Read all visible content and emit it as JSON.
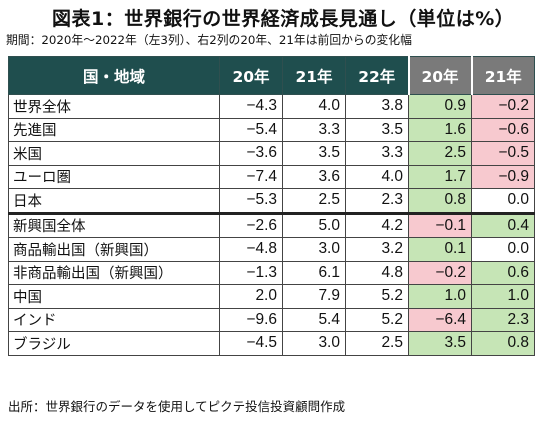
{
  "title": "図表1：世界銀行の世界経済成長見通し（単位は%）",
  "subtitle": "期間：2020年～2022年（左3列）、右2列の20年、21年は前回からの変化幅",
  "table": {
    "headers": [
      "国・地域",
      "20年",
      "21年",
      "22年",
      "20年",
      "21年"
    ],
    "rows": [
      {
        "name": "世界全体",
        "v20": "−4.3",
        "v21": "4.0",
        "v22": "3.8",
        "d20": "0.9",
        "d21": "−0.2",
        "d20s": "pos",
        "d21s": "neg"
      },
      {
        "name": "先進国",
        "v20": "−5.4",
        "v21": "3.3",
        "v22": "3.5",
        "d20": "1.6",
        "d21": "−0.6",
        "d20s": "pos",
        "d21s": "neg"
      },
      {
        "name": "米国",
        "v20": "−3.6",
        "v21": "3.5",
        "v22": "3.3",
        "d20": "2.5",
        "d21": "−0.5",
        "d20s": "pos",
        "d21s": "neg"
      },
      {
        "name": "ユーロ圏",
        "v20": "−7.4",
        "v21": "3.6",
        "v22": "4.0",
        "d20": "1.7",
        "d21": "−0.9",
        "d20s": "pos",
        "d21s": "neg"
      },
      {
        "name": "日本",
        "v20": "−5.3",
        "v21": "2.5",
        "v22": "2.3",
        "d20": "0.8",
        "d21": "0.0",
        "d20s": "pos",
        "d21s": "none"
      },
      {
        "name": "新興国全体",
        "v20": "−2.6",
        "v21": "5.0",
        "v22": "4.2",
        "d20": "−0.1",
        "d21": "0.4",
        "d20s": "neg",
        "d21s": "pos"
      },
      {
        "name": "商品輸出国（新興国）",
        "v20": "−4.8",
        "v21": "3.0",
        "v22": "3.2",
        "d20": "0.1",
        "d21": "0.0",
        "d20s": "pos",
        "d21s": "none"
      },
      {
        "name": "非商品輸出国（新興国）",
        "v20": "−1.3",
        "v21": "6.1",
        "v22": "4.8",
        "d20": "−0.2",
        "d21": "0.6",
        "d20s": "neg",
        "d21s": "pos"
      },
      {
        "name": "中国",
        "v20": "2.0",
        "v21": "7.9",
        "v22": "5.2",
        "d20": "1.0",
        "d21": "1.0",
        "d20s": "pos",
        "d21s": "pos"
      },
      {
        "name": "インド",
        "v20": "−9.6",
        "v21": "5.4",
        "v22": "5.2",
        "d20": "−6.4",
        "d21": "2.3",
        "d20s": "neg",
        "d21s": "pos"
      },
      {
        "name": "ブラジル",
        "v20": "−4.5",
        "v21": "3.0",
        "v22": "2.5",
        "d20": "3.5",
        "d21": "0.8",
        "d20s": "pos",
        "d21s": "pos"
      }
    ]
  },
  "colors": {
    "header_dark": "#1f4e4e",
    "header_gray": "#7a7a7a",
    "positive_fill": "#c6e5b6",
    "negative_fill": "#f7c9cf"
  },
  "source": "出所：世界銀行のデータを使用してピクテ投信投資顧問作成"
}
